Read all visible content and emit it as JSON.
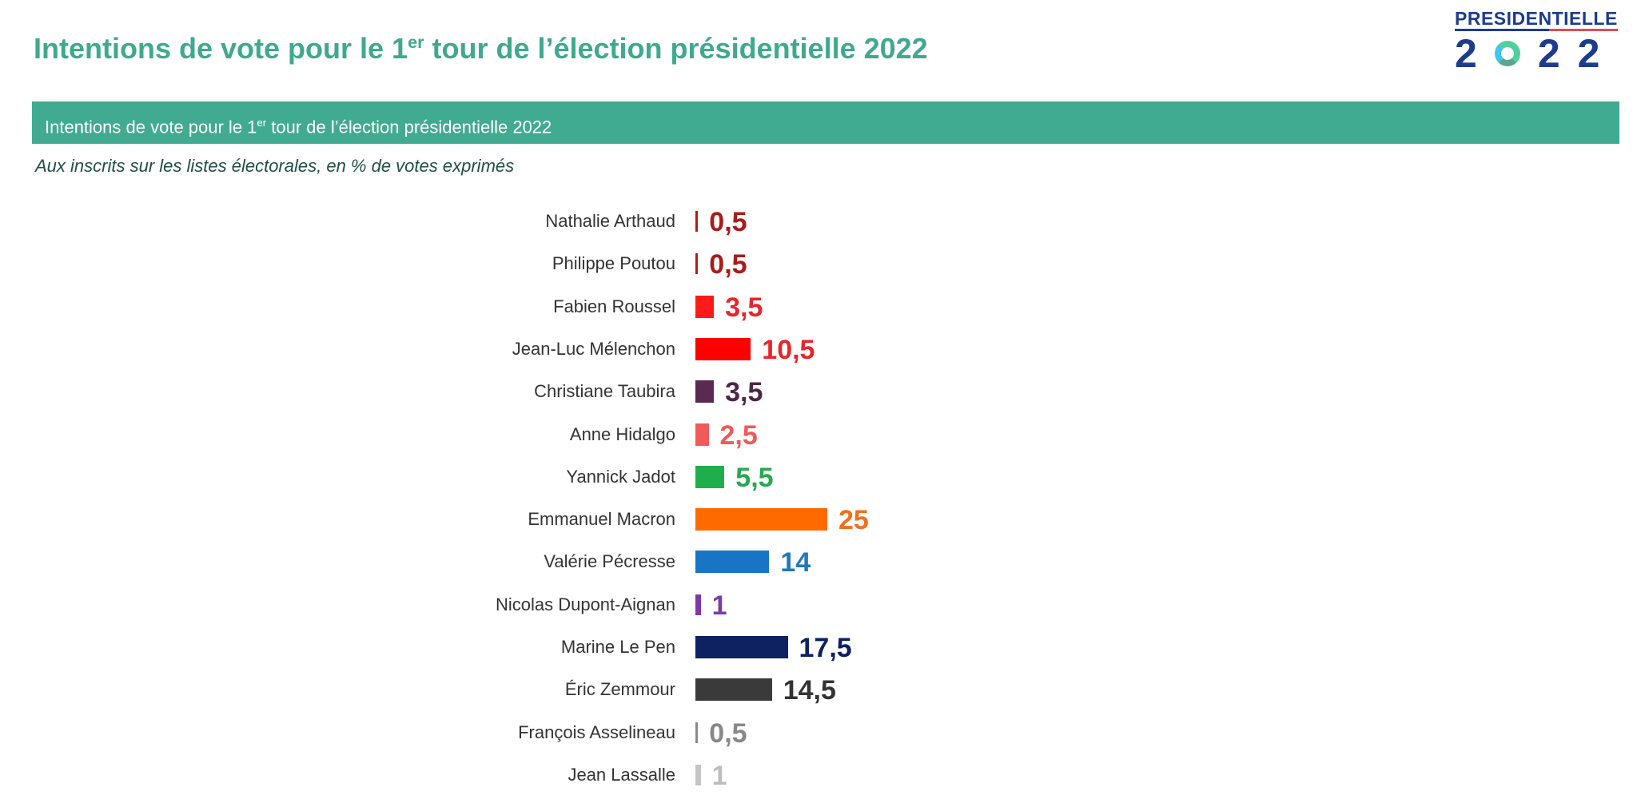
{
  "header": {
    "title": "Intentions de vote pour le 1",
    "title_sup": "er",
    "title_rest": " tour de l’élection présidentielle 2022",
    "logo_top": "PRESIDENTIELLE",
    "logo_digits": [
      "2",
      "2",
      "2"
    ]
  },
  "banner": {
    "text": "Intentions de vote pour le 1",
    "sup": "er",
    "rest": " tour de l’élection présidentielle 2022"
  },
  "subtitle": "Aux inscrits sur les listes électorales, en % de votes exprimés",
  "chart_data": {
    "type": "bar",
    "orientation": "horizontal",
    "title": "Intentions de vote pour le 1er tour de l’élection présidentielle 2022",
    "xlabel": "",
    "ylabel": "",
    "unit": "%",
    "xlim": [
      0,
      25
    ],
    "grid": false,
    "categories": [
      "Nathalie Arthaud",
      "Philippe Poutou",
      "Fabien Roussel",
      "Jean-Luc Mélenchon",
      "Christiane Taubira",
      "Anne Hidalgo",
      "Yannick Jadot",
      "Emmanuel Macron",
      "Valérie Pécresse",
      "Nicolas Dupont-Aignan",
      "Marine Le Pen",
      "Éric Zemmour",
      "François Asselineau",
      "Jean Lassalle"
    ],
    "values": [
      0.5,
      0.5,
      3.5,
      10.5,
      3.5,
      2.5,
      5.5,
      25,
      14,
      1,
      17.5,
      14.5,
      0.5,
      1
    ],
    "labels": [
      "0,5",
      "0,5",
      "3,5",
      "10,5",
      "3,5",
      "2,5",
      "5,5",
      "25",
      "14",
      "1",
      "17,5",
      "14,5",
      "0,5",
      "1"
    ],
    "colors": [
      "#b01c1c",
      "#b01c1c",
      "#ff1a1a",
      "#ff0000",
      "#5a2a52",
      "#f05a5a",
      "#1fae4b",
      "#ff6a00",
      "#1874c4",
      "#7b3aa8",
      "#0e2160",
      "#3a3a3a",
      "#8a8a8a",
      "#c4c4c4"
    ],
    "label_colors": [
      "#a81c1c",
      "#a81c1c",
      "#e8252a",
      "#e8252a",
      "#4e2448",
      "#ee5a5a",
      "#28a850",
      "#f07020",
      "#1f78c1",
      "#7b3aa8",
      "#0e2160",
      "#333333",
      "#888888",
      "#bdbdbd"
    ]
  }
}
